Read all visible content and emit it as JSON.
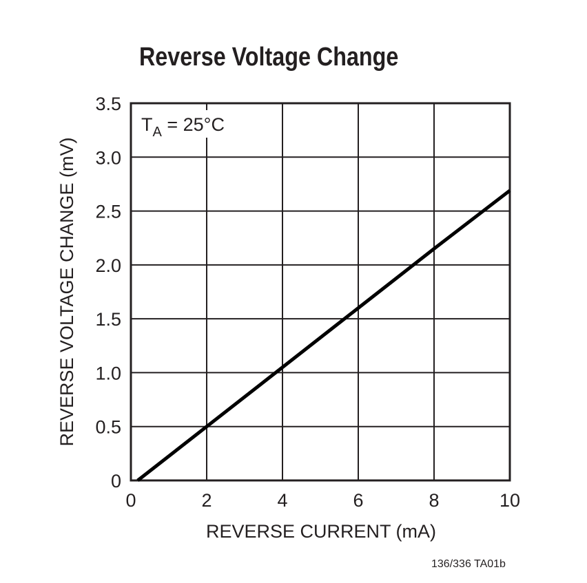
{
  "chart_data": {
    "type": "line",
    "title": "Reverse Voltage Change",
    "xlabel": "REVERSE CURRENT (mA)",
    "ylabel": "REVERSE VOLTAGE CHANGE (mV)",
    "xlim": [
      0,
      10
    ],
    "ylim": [
      0,
      3.5
    ],
    "x_ticks": [
      "0",
      "2",
      "4",
      "6",
      "8",
      "10"
    ],
    "y_ticks": [
      "0",
      "0.5",
      "1.0",
      "1.5",
      "2.0",
      "2.5",
      "3.0",
      "3.5"
    ],
    "grid": true,
    "annotation": "TA = 25°C",
    "series": [
      {
        "name": "Reverse Voltage Change",
        "x": [
          0.18,
          2,
          4,
          6,
          8,
          10
        ],
        "y": [
          0,
          0.5,
          1.05,
          1.6,
          2.15,
          2.69
        ]
      }
    ]
  },
  "footer": "136/336 TA01b",
  "annotation": {
    "t": "T",
    "sub": "A",
    "rest": " = 25°C"
  }
}
